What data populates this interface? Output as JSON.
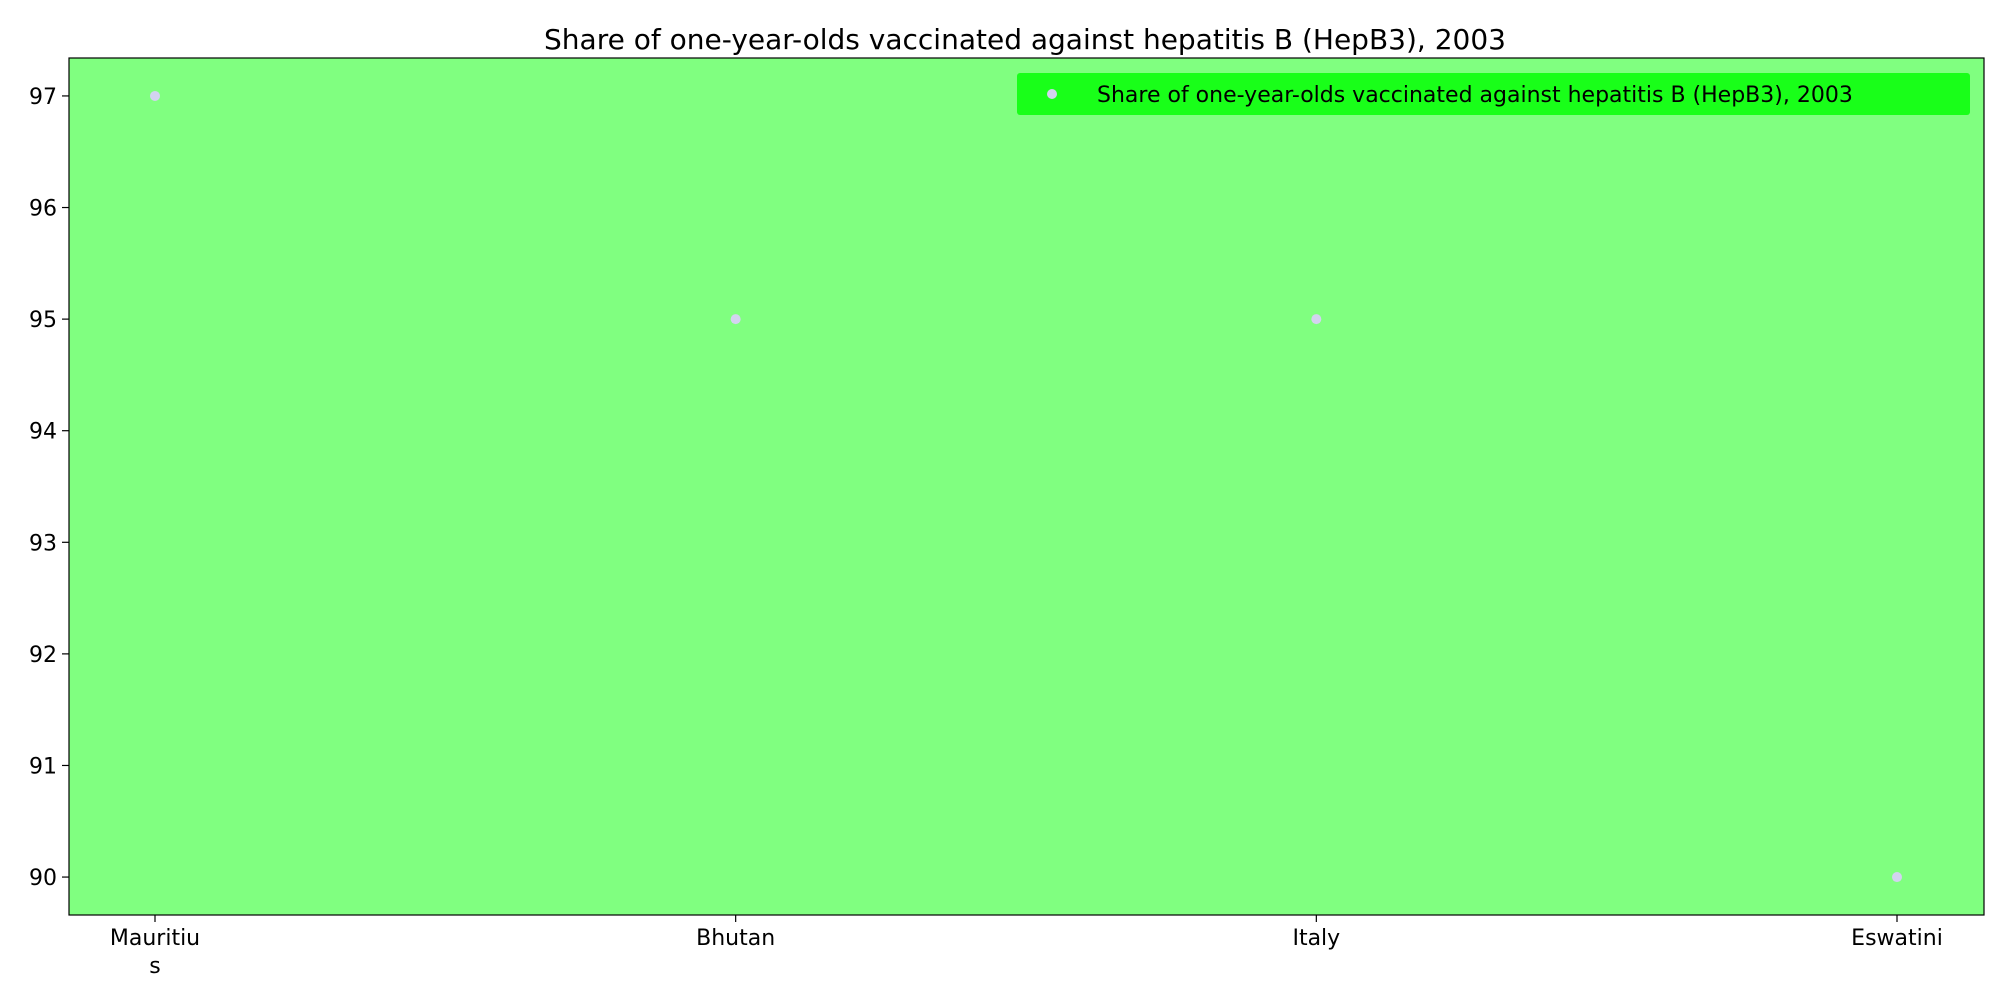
{
  "chart_data": {
    "type": "scatter",
    "title": "Share of one-year-olds vaccinated against hepatitis B (HepB3), 2003",
    "categories": [
      "Mauritius",
      "Bhutan",
      "Italy",
      "Eswatini"
    ],
    "category_tick_labels": [
      [
        "Mauritiu",
        "s"
      ],
      [
        "Bhutan"
      ],
      [
        "Italy"
      ],
      [
        "Eswatini"
      ]
    ],
    "series": [
      {
        "name": "Share of one-year-olds vaccinated against hepatitis B (HepB3), 2003",
        "values": [
          97,
          95,
          95,
          90
        ],
        "color": "#d3d3f0"
      }
    ],
    "xlabel": "",
    "ylabel": "",
    "ylim": [
      89.66,
      97.34
    ],
    "yticks": [
      90,
      91,
      92,
      93,
      94,
      95,
      96,
      97
    ],
    "grid": false,
    "legend_position": "top-right",
    "colors": {
      "plot_background": "#80ff80",
      "legend_background": "#19ff19",
      "axes_edge": "#000000"
    }
  }
}
